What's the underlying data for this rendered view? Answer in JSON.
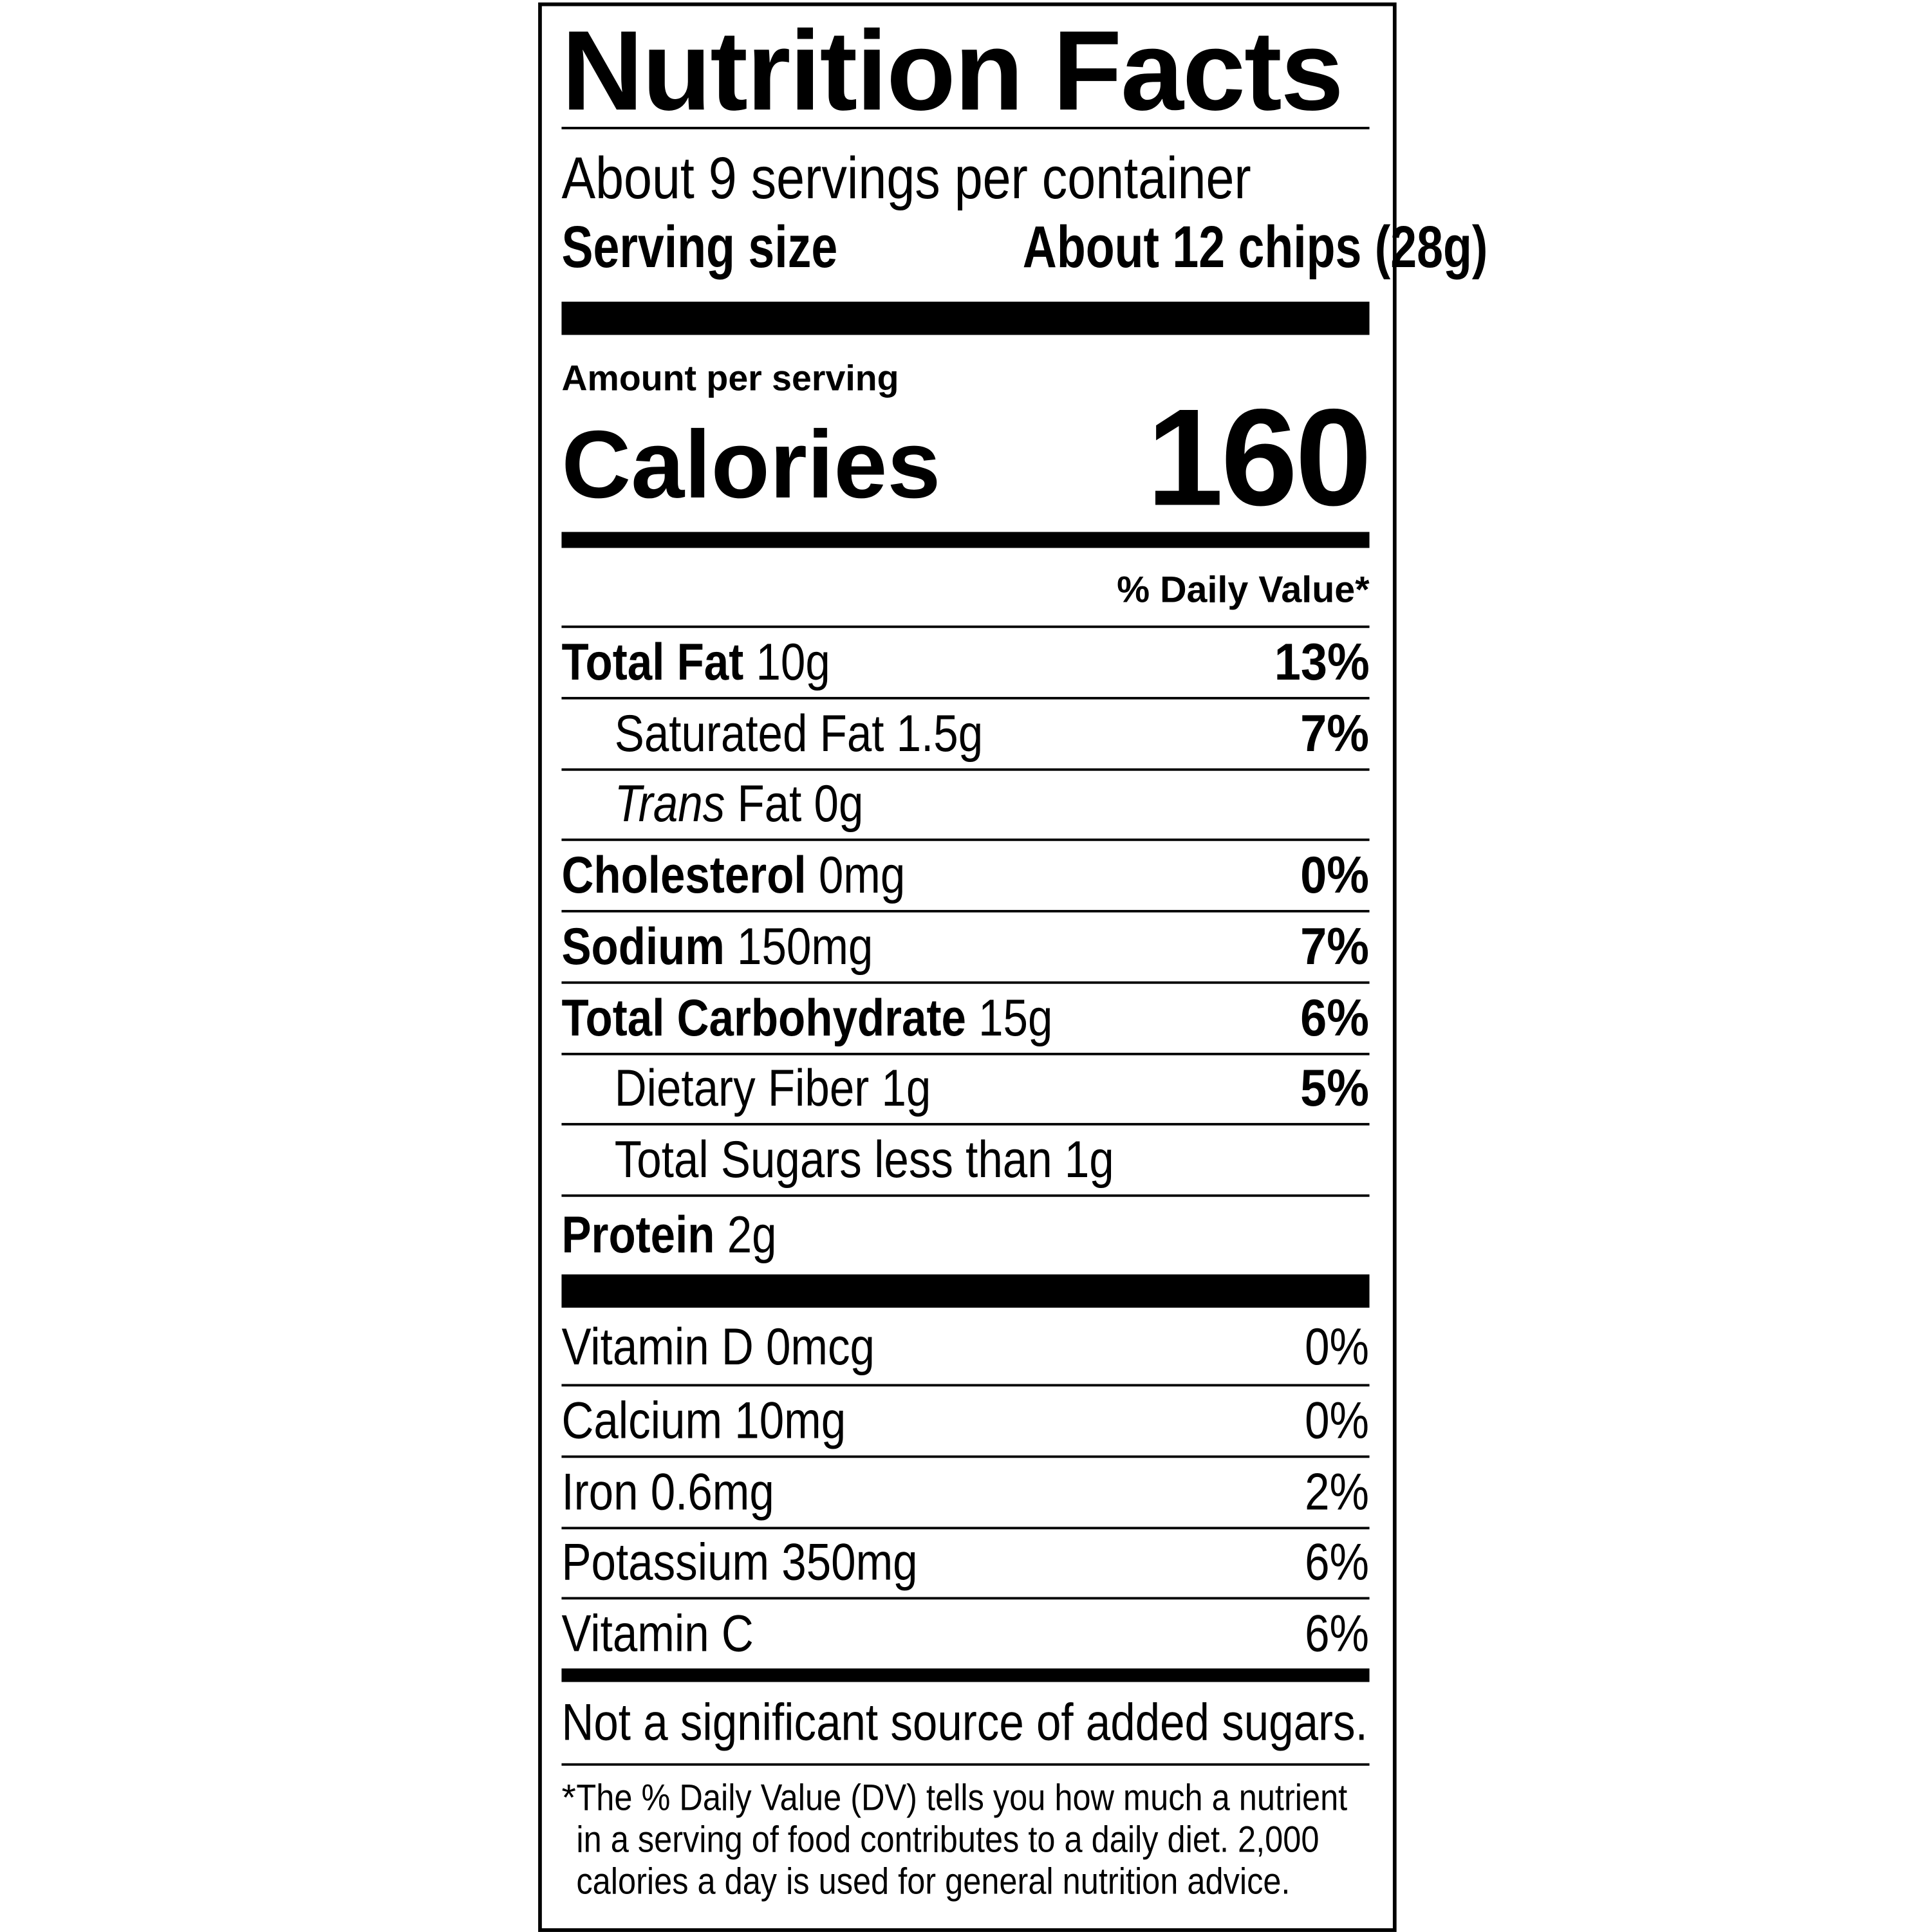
{
  "label": {
    "title": "Nutrition Facts",
    "servings_per_container": "About 9 servings per container",
    "serving_size_label": "Serving size",
    "serving_size_value": "About 12 chips (28g)",
    "amount_per_serving": "Amount per serving",
    "calories_label": "Calories",
    "calories_value": "160",
    "daily_value_header": "% Daily Value*",
    "nutrients": [
      {
        "name": "Total Fat",
        "amount": "10g",
        "dv": "13%",
        "bold": true,
        "indent": false
      },
      {
        "name": "Saturated Fat",
        "amount": "1.5g",
        "dv": "7%",
        "bold": false,
        "indent": true
      },
      {
        "name": "Trans",
        "name_suffix": "Fat",
        "amount": "0g",
        "dv": "",
        "bold": false,
        "indent": true
      },
      {
        "name": "Cholesterol",
        "amount": "0mg",
        "dv": "0%",
        "bold": true,
        "indent": false
      },
      {
        "name": "Sodium",
        "amount": "150mg",
        "dv": "7%",
        "bold": true,
        "indent": false
      },
      {
        "name": "Total Carbohydrate",
        "amount": "15g",
        "dv": "6%",
        "bold": true,
        "indent": false
      },
      {
        "name": "Dietary Fiber",
        "amount": "1g",
        "dv": "5%",
        "bold": false,
        "indent": true
      },
      {
        "name": "Total Sugars",
        "amount": "less than 1g",
        "dv": "",
        "bold": false,
        "indent": true
      },
      {
        "name": "Protein",
        "amount": "2g",
        "dv": "",
        "bold": true,
        "indent": false
      }
    ],
    "vitamins": [
      {
        "name": "Vitamin D",
        "amount": "0mcg",
        "dv": "0%"
      },
      {
        "name": "Calcium",
        "amount": "10mg",
        "dv": "0%"
      },
      {
        "name": "Iron",
        "amount": "0.6mg",
        "dv": "2%"
      },
      {
        "name": "Potassium",
        "amount": "350mg",
        "dv": "6%"
      },
      {
        "name": "Vitamin C",
        "amount": "",
        "dv": "6%"
      }
    ],
    "added_sugars_note": "Not a significant source of added sugars.",
    "footnote_star": "*",
    "footnote_lines": [
      "The % Daily Value (DV) tells you how much a nutrient",
      "in a serving of food contributes to a daily diet. 2,000",
      "calories a day is used for general nutrition advice."
    ]
  }
}
